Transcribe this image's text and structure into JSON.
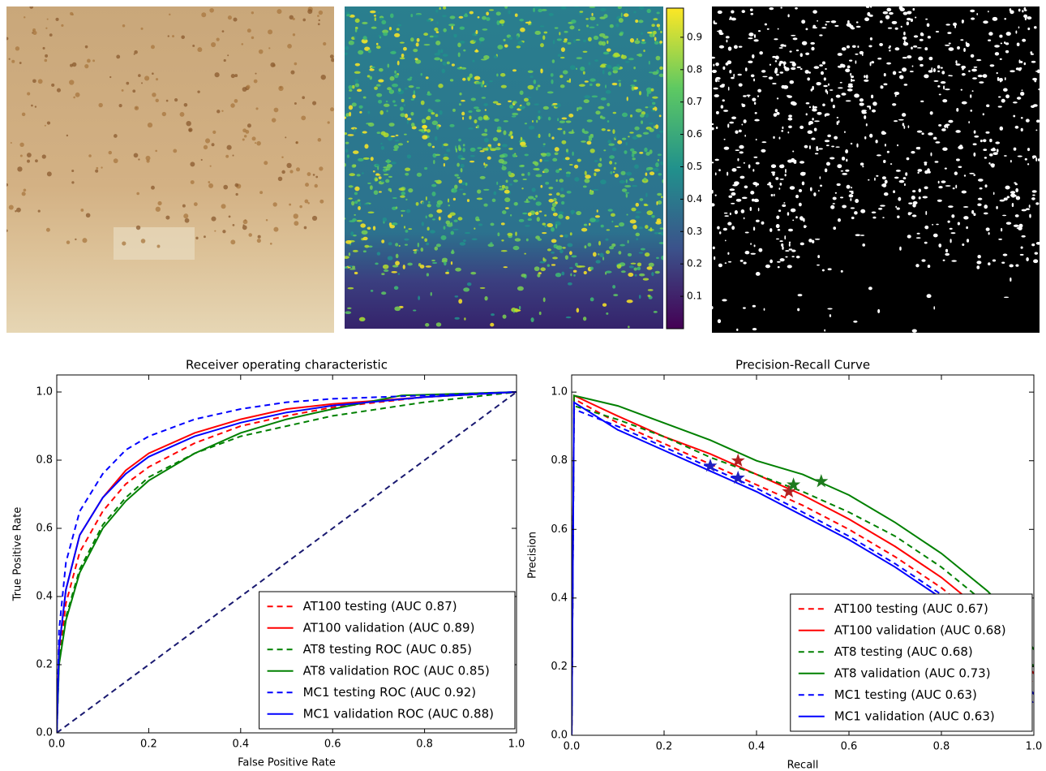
{
  "chart_data": [
    {
      "type": "colorbar",
      "ylim": [
        0,
        0.99
      ],
      "yticks": [
        0.1,
        0.2,
        0.3,
        0.4,
        0.5,
        0.6,
        0.7,
        0.8,
        0.9
      ]
    },
    {
      "type": "line",
      "title": "Receiver operating characteristic",
      "xlabel": "False Positive Rate",
      "ylabel": "True Positive Rate",
      "xlim": [
        0,
        1
      ],
      "ylim": [
        0,
        1.05
      ],
      "xticks": [
        {
          "value": 0,
          "label": "0.0"
        },
        0.2,
        0.4,
        0.6,
        0.8,
        {
          "value": 1,
          "label": "1.0"
        }
      ],
      "yticks": [
        {
          "value": 0,
          "label": "0.0"
        },
        0.2,
        0.4,
        0.6,
        0.8,
        {
          "value": 1,
          "label": "1.0"
        }
      ],
      "legend": "lower right",
      "series": [
        {
          "color": "#191970",
          "dash": true,
          "x": [
            0,
            1
          ],
          "values": [
            0,
            1
          ]
        },
        {
          "name": "AT100 testing (AUC 0.87)",
          "color": "#ff0000",
          "dash": true,
          "x": [
            0,
            0.005,
            0.02,
            0.05,
            0.1,
            0.15,
            0.2,
            0.3,
            0.4,
            0.5,
            0.6,
            0.8,
            1
          ],
          "values": [
            0,
            0.22,
            0.38,
            0.53,
            0.65,
            0.73,
            0.78,
            0.85,
            0.9,
            0.93,
            0.955,
            0.985,
            1
          ]
        },
        {
          "name": "AT100 validation (AUC 0.89)",
          "color": "#ff0000",
          "dash": false,
          "x": [
            0,
            0.005,
            0.02,
            0.05,
            0.1,
            0.15,
            0.2,
            0.3,
            0.4,
            0.5,
            0.6,
            0.8,
            1
          ],
          "values": [
            0,
            0.25,
            0.42,
            0.58,
            0.69,
            0.77,
            0.82,
            0.88,
            0.92,
            0.95,
            0.965,
            0.985,
            1
          ]
        },
        {
          "name": "AT8 testing ROC (AUC 0.85)",
          "color": "#008000",
          "dash": true,
          "x": [
            0,
            0.005,
            0.02,
            0.05,
            0.1,
            0.15,
            0.2,
            0.3,
            0.4,
            0.5,
            0.6,
            0.8,
            1
          ],
          "values": [
            0,
            0.21,
            0.34,
            0.48,
            0.61,
            0.69,
            0.75,
            0.82,
            0.87,
            0.9,
            0.93,
            0.97,
            1
          ]
        },
        {
          "name": "AT8 validation ROC (AUC 0.85)",
          "color": "#008000",
          "dash": false,
          "x": [
            0,
            0.005,
            0.02,
            0.05,
            0.1,
            0.15,
            0.2,
            0.3,
            0.4,
            0.5,
            0.6,
            0.75,
            1
          ],
          "values": [
            0,
            0.2,
            0.33,
            0.47,
            0.6,
            0.68,
            0.74,
            0.82,
            0.88,
            0.92,
            0.95,
            0.99,
            1
          ]
        },
        {
          "name": "MC1 testing ROC (AUC 0.92)",
          "color": "#0000ff",
          "dash": true,
          "x": [
            0,
            0.005,
            0.02,
            0.05,
            0.1,
            0.15,
            0.2,
            0.3,
            0.4,
            0.5,
            0.6,
            0.8,
            1
          ],
          "values": [
            0,
            0.3,
            0.5,
            0.65,
            0.76,
            0.83,
            0.87,
            0.92,
            0.95,
            0.97,
            0.98,
            0.99,
            1
          ]
        },
        {
          "name": "MC1 validation ROC (AUC 0.88)",
          "color": "#0000ff",
          "dash": false,
          "x": [
            0,
            0.005,
            0.02,
            0.05,
            0.1,
            0.15,
            0.2,
            0.3,
            0.4,
            0.5,
            0.6,
            0.8,
            1
          ],
          "values": [
            0,
            0.25,
            0.42,
            0.58,
            0.69,
            0.76,
            0.81,
            0.87,
            0.91,
            0.94,
            0.96,
            0.985,
            1
          ]
        }
      ]
    },
    {
      "type": "line",
      "title": "Precision-Recall Curve",
      "xlabel": "Recall",
      "ylabel": "Precision",
      "xlim": [
        0,
        1
      ],
      "ylim": [
        0,
        1.05
      ],
      "xticks": [
        {
          "value": 0,
          "label": "0.0"
        },
        0.2,
        0.4,
        0.6,
        0.8,
        {
          "value": 1,
          "label": "1.0"
        }
      ],
      "yticks": [
        {
          "value": 0,
          "label": "0.0"
        },
        0.2,
        0.4,
        0.6,
        0.8,
        {
          "value": 1,
          "label": "1.0"
        }
      ],
      "legend": "lower right",
      "series": [
        {
          "name": "AT100 testing (AUC 0.67)",
          "color": "#ff0000",
          "dash": true,
          "x": [
            0,
            0.005,
            0.1,
            0.2,
            0.3,
            0.4,
            0.5,
            0.6,
            0.7,
            0.8,
            0.9,
            1
          ],
          "values": [
            0,
            0.98,
            0.91,
            0.85,
            0.79,
            0.73,
            0.67,
            0.6,
            0.52,
            0.43,
            0.32,
            0.15
          ]
        },
        {
          "name": "AT100 validation (AUC 0.68)",
          "color": "#ff0000",
          "dash": false,
          "x": [
            0,
            0.005,
            0.1,
            0.2,
            0.3,
            0.4,
            0.5,
            0.6,
            0.7,
            0.8,
            0.9,
            1
          ],
          "values": [
            0,
            0.99,
            0.93,
            0.87,
            0.82,
            0.76,
            0.7,
            0.63,
            0.55,
            0.46,
            0.35,
            0.18
          ]
        },
        {
          "name": "AT8 testing (AUC 0.68)",
          "color": "#008000",
          "dash": true,
          "x": [
            0,
            0.005,
            0.1,
            0.2,
            0.3,
            0.4,
            0.5,
            0.6,
            0.7,
            0.8,
            0.9,
            0.95,
            1
          ],
          "values": [
            0,
            0.96,
            0.92,
            0.87,
            0.81,
            0.76,
            0.71,
            0.65,
            0.58,
            0.49,
            0.38,
            0.3,
            0.2
          ]
        },
        {
          "name": "AT8 validation (AUC 0.73)",
          "color": "#008000",
          "dash": false,
          "x": [
            0,
            0.005,
            0.1,
            0.2,
            0.3,
            0.4,
            0.5,
            0.6,
            0.7,
            0.8,
            0.9,
            0.95,
            1
          ],
          "values": [
            0,
            0.99,
            0.96,
            0.91,
            0.86,
            0.8,
            0.76,
            0.7,
            0.62,
            0.53,
            0.42,
            0.35,
            0.25
          ]
        },
        {
          "name": "MC1 testing (AUC 0.63)",
          "color": "#0000ff",
          "dash": true,
          "x": [
            0,
            0.005,
            0.1,
            0.2,
            0.3,
            0.4,
            0.5,
            0.6,
            0.7,
            0.8,
            0.9,
            1
          ],
          "values": [
            0,
            0.95,
            0.9,
            0.84,
            0.78,
            0.72,
            0.65,
            0.58,
            0.5,
            0.41,
            0.3,
            0.09
          ]
        },
        {
          "name": "MC1 validation (AUC 0.63)",
          "color": "#0000ff",
          "dash": false,
          "x": [
            0,
            0.005,
            0.1,
            0.2,
            0.3,
            0.4,
            0.5,
            0.6,
            0.7,
            0.8,
            0.9,
            1
          ],
          "values": [
            0,
            0.97,
            0.89,
            0.83,
            0.77,
            0.71,
            0.64,
            0.57,
            0.49,
            0.4,
            0.3,
            0.12
          ]
        }
      ],
      "markers": [
        {
          "color": "#b22222",
          "x": [
            0.36,
            0.47
          ],
          "y": [
            0.8,
            0.71
          ]
        },
        {
          "color": "#1e7b1e",
          "x": [
            0.48,
            0.54
          ],
          "y": [
            0.73,
            0.74
          ]
        },
        {
          "color": "#2020c0",
          "x": [
            0.3,
            0.36
          ],
          "y": [
            0.785,
            0.75
          ]
        }
      ]
    }
  ]
}
